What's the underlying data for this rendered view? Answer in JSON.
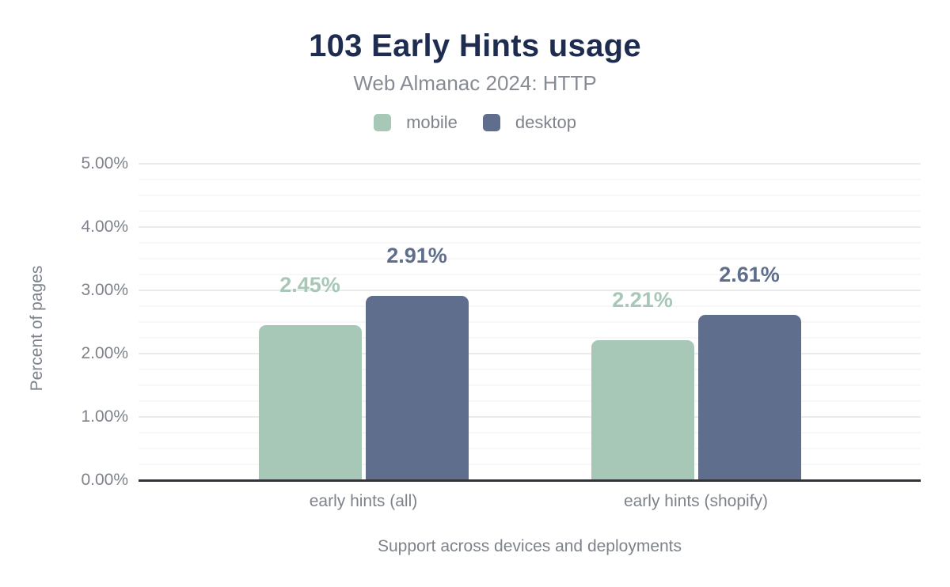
{
  "header": {
    "title": "103 Early Hints usage",
    "subtitle": "Web Almanac 2024: HTTP"
  },
  "colors": {
    "title": "#1e2c50",
    "muted_text": "#7e838b",
    "subtitle_text": "#878b93",
    "axis_line": "#33343a",
    "grid_major": "#ebebeb",
    "grid_minor": "#f7f7f7",
    "mobile": "#a7c8b6",
    "desktop": "#5e6e8c"
  },
  "chart_data": {
    "type": "bar",
    "title": "103 Early Hints usage",
    "subtitle": "Web Almanac 2024: HTTP",
    "categories": [
      "early hints (all)",
      "early hints (shopify)"
    ],
    "series": [
      {
        "name": "mobile",
        "color": "#a7c8b6",
        "values": [
          2.45,
          2.21
        ],
        "labels": [
          "2.45%",
          "2.21%"
        ]
      },
      {
        "name": "desktop",
        "color": "#5e6e8c",
        "values": [
          2.91,
          2.61
        ],
        "labels": [
          "2.91%",
          "2.61%"
        ]
      }
    ],
    "xlabel": "Support across devices and deployments",
    "ylabel": "Percent of pages",
    "ylim": [
      0,
      5
    ],
    "y_major_step": 1,
    "y_minor_step": 0.25,
    "grid": true,
    "legend_position": "top",
    "y_ticks": [
      {
        "value": 0,
        "label": "0.00%"
      },
      {
        "value": 1,
        "label": "1.00%"
      },
      {
        "value": 2,
        "label": "2.00%"
      },
      {
        "value": 3,
        "label": "3.00%"
      },
      {
        "value": 4,
        "label": "4.00%"
      },
      {
        "value": 5,
        "label": "5.00%"
      }
    ]
  }
}
